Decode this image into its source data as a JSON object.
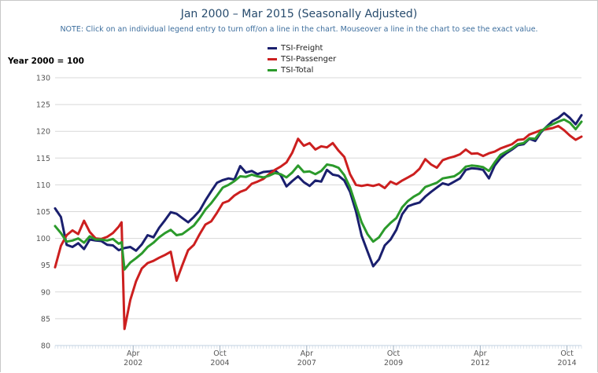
{
  "title": "Jan 2000 – Mar 2015 (Seasonally Adjusted)",
  "note": "NOTE: Click on an individual legend entry to turn off/on a line in the chart. Mouseover a line in the chart to see the exact value.",
  "y_axis_title": "Year 2000 = 100",
  "chart_data": {
    "type": "line",
    "title": "Jan 2000 – Mar 2015 (Seasonally Adjusted)",
    "ylabel": "Year 2000 = 100",
    "ylim": [
      80,
      130
    ],
    "y_ticks": [
      80,
      85,
      90,
      95,
      100,
      105,
      110,
      115,
      120,
      125,
      130
    ],
    "x_range": [
      "2000-01",
      "2015-03"
    ],
    "x_ticks": [
      {
        "month": "Apr",
        "year": "2002",
        "date": "2002-04"
      },
      {
        "month": "Oct",
        "year": "2004",
        "date": "2004-10"
      },
      {
        "month": "Apr",
        "year": "2007",
        "date": "2007-04"
      },
      {
        "month": "Oct",
        "year": "2009",
        "date": "2009-10"
      },
      {
        "month": "Apr",
        "year": "2012",
        "date": "2012-04"
      },
      {
        "month": "Oct",
        "year": "2014",
        "date": "2014-10"
      }
    ],
    "grid": true,
    "legend_position": "top-center",
    "series": [
      {
        "name": "TSI-Freight",
        "color": "#1a1f6e",
        "points": [
          [
            "2000-01",
            105.6
          ],
          [
            "2000-03",
            104.0
          ],
          [
            "2000-05",
            98.8
          ],
          [
            "2000-07",
            98.4
          ],
          [
            "2000-09",
            99.1
          ],
          [
            "2000-11",
            98.0
          ],
          [
            "2001-01",
            99.8
          ],
          [
            "2001-03",
            99.6
          ],
          [
            "2001-05",
            99.5
          ],
          [
            "2001-07",
            98.8
          ],
          [
            "2001-09",
            98.7
          ],
          [
            "2001-11",
            97.8
          ],
          [
            "2002-01",
            98.2
          ],
          [
            "2002-03",
            98.4
          ],
          [
            "2002-05",
            97.7
          ],
          [
            "2002-07",
            98.9
          ],
          [
            "2002-09",
            100.6
          ],
          [
            "2002-11",
            100.2
          ],
          [
            "2003-01",
            102.0
          ],
          [
            "2003-03",
            103.4
          ],
          [
            "2003-05",
            104.9
          ],
          [
            "2003-07",
            104.6
          ],
          [
            "2003-09",
            103.8
          ],
          [
            "2003-11",
            103.0
          ],
          [
            "2004-01",
            104.0
          ],
          [
            "2004-03",
            105.2
          ],
          [
            "2004-05",
            107.1
          ],
          [
            "2004-07",
            108.8
          ],
          [
            "2004-09",
            110.4
          ],
          [
            "2004-11",
            110.9
          ],
          [
            "2005-01",
            111.2
          ],
          [
            "2005-03",
            111.0
          ],
          [
            "2005-05",
            113.5
          ],
          [
            "2005-07",
            112.3
          ],
          [
            "2005-09",
            112.6
          ],
          [
            "2005-11",
            112.0
          ],
          [
            "2006-01",
            112.4
          ],
          [
            "2006-03",
            112.5
          ],
          [
            "2006-05",
            112.7
          ],
          [
            "2006-07",
            111.8
          ],
          [
            "2006-09",
            109.7
          ],
          [
            "2006-11",
            110.7
          ],
          [
            "2007-01",
            111.6
          ],
          [
            "2007-03",
            110.5
          ],
          [
            "2007-05",
            109.8
          ],
          [
            "2007-07",
            110.8
          ],
          [
            "2007-09",
            110.6
          ],
          [
            "2007-11",
            112.8
          ],
          [
            "2008-01",
            111.9
          ],
          [
            "2008-03",
            111.7
          ],
          [
            "2008-05",
            110.8
          ],
          [
            "2008-07",
            108.7
          ],
          [
            "2008-09",
            105.1
          ],
          [
            "2008-11",
            100.5
          ],
          [
            "2009-01",
            97.6
          ],
          [
            "2009-03",
            94.8
          ],
          [
            "2009-05",
            96.1
          ],
          [
            "2009-07",
            98.7
          ],
          [
            "2009-09",
            99.8
          ],
          [
            "2009-11",
            101.6
          ],
          [
            "2010-01",
            104.5
          ],
          [
            "2010-03",
            106.0
          ],
          [
            "2010-05",
            106.4
          ],
          [
            "2010-07",
            106.7
          ],
          [
            "2010-09",
            107.8
          ],
          [
            "2010-11",
            108.7
          ],
          [
            "2011-01",
            109.5
          ],
          [
            "2011-03",
            110.3
          ],
          [
            "2011-05",
            110.0
          ],
          [
            "2011-07",
            110.6
          ],
          [
            "2011-09",
            111.2
          ],
          [
            "2011-11",
            112.8
          ],
          [
            "2012-01",
            113.1
          ],
          [
            "2012-03",
            113.0
          ],
          [
            "2012-05",
            112.8
          ],
          [
            "2012-07",
            111.2
          ],
          [
            "2012-09",
            113.6
          ],
          [
            "2012-11",
            115.0
          ],
          [
            "2013-01",
            115.9
          ],
          [
            "2013-03",
            116.6
          ],
          [
            "2013-05",
            117.4
          ],
          [
            "2013-07",
            117.6
          ],
          [
            "2013-09",
            118.6
          ],
          [
            "2013-11",
            118.2
          ],
          [
            "2014-01",
            119.8
          ],
          [
            "2014-03",
            120.9
          ],
          [
            "2014-05",
            121.9
          ],
          [
            "2014-07",
            122.5
          ],
          [
            "2014-09",
            123.4
          ],
          [
            "2014-11",
            122.5
          ],
          [
            "2015-01",
            121.3
          ],
          [
            "2015-03",
            123.0
          ]
        ]
      },
      {
        "name": "TSI-Passenger",
        "color": "#cc1f1f",
        "points": [
          [
            "2000-01",
            94.6
          ],
          [
            "2000-03",
            98.6
          ],
          [
            "2000-05",
            100.6
          ],
          [
            "2000-07",
            101.5
          ],
          [
            "2000-09",
            100.8
          ],
          [
            "2000-11",
            103.3
          ],
          [
            "2001-01",
            101.2
          ],
          [
            "2001-03",
            100.0
          ],
          [
            "2001-05",
            99.9
          ],
          [
            "2001-07",
            100.3
          ],
          [
            "2001-09",
            101.0
          ],
          [
            "2001-11",
            102.2
          ],
          [
            "2001-12",
            103.0
          ],
          [
            "2002-01",
            83.1
          ],
          [
            "2002-03",
            88.5
          ],
          [
            "2002-05",
            92.0
          ],
          [
            "2002-07",
            94.4
          ],
          [
            "2002-09",
            95.4
          ],
          [
            "2002-11",
            95.8
          ],
          [
            "2003-01",
            96.4
          ],
          [
            "2003-03",
            96.9
          ],
          [
            "2003-05",
            97.5
          ],
          [
            "2003-07",
            92.1
          ],
          [
            "2003-09",
            95.0
          ],
          [
            "2003-11",
            97.8
          ],
          [
            "2004-01",
            98.8
          ],
          [
            "2004-03",
            100.8
          ],
          [
            "2004-05",
            102.6
          ],
          [
            "2004-07",
            103.2
          ],
          [
            "2004-09",
            104.8
          ],
          [
            "2004-11",
            106.6
          ],
          [
            "2005-01",
            107.0
          ],
          [
            "2005-03",
            108.0
          ],
          [
            "2005-05",
            108.7
          ],
          [
            "2005-07",
            109.1
          ],
          [
            "2005-09",
            110.2
          ],
          [
            "2005-11",
            110.6
          ],
          [
            "2006-01",
            111.1
          ],
          [
            "2006-03",
            112.0
          ],
          [
            "2006-05",
            112.8
          ],
          [
            "2006-07",
            113.4
          ],
          [
            "2006-09",
            114.2
          ],
          [
            "2006-11",
            116.0
          ],
          [
            "2007-01",
            118.6
          ],
          [
            "2007-03",
            117.3
          ],
          [
            "2007-05",
            117.8
          ],
          [
            "2007-07",
            116.6
          ],
          [
            "2007-09",
            117.2
          ],
          [
            "2007-11",
            117.0
          ],
          [
            "2008-01",
            117.8
          ],
          [
            "2008-03",
            116.4
          ],
          [
            "2008-05",
            115.2
          ],
          [
            "2008-07",
            112.0
          ],
          [
            "2008-09",
            110.0
          ],
          [
            "2008-11",
            109.8
          ],
          [
            "2009-01",
            110.0
          ],
          [
            "2009-03",
            109.8
          ],
          [
            "2009-05",
            110.1
          ],
          [
            "2009-07",
            109.4
          ],
          [
            "2009-09",
            110.6
          ],
          [
            "2009-11",
            110.1
          ],
          [
            "2010-01",
            110.8
          ],
          [
            "2010-03",
            111.4
          ],
          [
            "2010-05",
            112.0
          ],
          [
            "2010-07",
            113.0
          ],
          [
            "2010-09",
            114.8
          ],
          [
            "2010-11",
            113.8
          ],
          [
            "2011-01",
            113.2
          ],
          [
            "2011-03",
            114.6
          ],
          [
            "2011-05",
            115.0
          ],
          [
            "2011-07",
            115.3
          ],
          [
            "2011-09",
            115.7
          ],
          [
            "2011-11",
            116.6
          ],
          [
            "2012-01",
            115.8
          ],
          [
            "2012-03",
            115.9
          ],
          [
            "2012-05",
            115.4
          ],
          [
            "2012-07",
            115.9
          ],
          [
            "2012-09",
            116.2
          ],
          [
            "2012-11",
            116.8
          ],
          [
            "2013-01",
            117.2
          ],
          [
            "2013-03",
            117.6
          ],
          [
            "2013-05",
            118.4
          ],
          [
            "2013-07",
            118.5
          ],
          [
            "2013-09",
            119.4
          ],
          [
            "2013-11",
            119.8
          ],
          [
            "2014-01",
            120.2
          ],
          [
            "2014-03",
            120.4
          ],
          [
            "2014-05",
            120.6
          ],
          [
            "2014-07",
            121.0
          ],
          [
            "2014-09",
            120.2
          ],
          [
            "2014-11",
            119.2
          ],
          [
            "2015-01",
            118.4
          ],
          [
            "2015-03",
            119.0
          ]
        ]
      },
      {
        "name": "TSI-Total",
        "color": "#2b9a2b",
        "points": [
          [
            "2000-01",
            102.3
          ],
          [
            "2000-03",
            101.0
          ],
          [
            "2000-05",
            99.4
          ],
          [
            "2000-07",
            99.6
          ],
          [
            "2000-09",
            100.0
          ],
          [
            "2000-11",
            99.2
          ],
          [
            "2001-01",
            100.4
          ],
          [
            "2001-03",
            99.8
          ],
          [
            "2001-05",
            99.8
          ],
          [
            "2001-07",
            99.6
          ],
          [
            "2001-09",
            99.9
          ],
          [
            "2001-11",
            99.0
          ],
          [
            "2001-12",
            99.3
          ],
          [
            "2002-01",
            94.2
          ],
          [
            "2002-03",
            95.5
          ],
          [
            "2002-05",
            96.3
          ],
          [
            "2002-07",
            97.2
          ],
          [
            "2002-09",
            98.4
          ],
          [
            "2002-11",
            99.2
          ],
          [
            "2003-01",
            100.2
          ],
          [
            "2003-03",
            101.0
          ],
          [
            "2003-05",
            101.6
          ],
          [
            "2003-07",
            100.6
          ],
          [
            "2003-09",
            100.8
          ],
          [
            "2003-11",
            101.6
          ],
          [
            "2004-01",
            102.4
          ],
          [
            "2004-03",
            103.8
          ],
          [
            "2004-05",
            105.4
          ],
          [
            "2004-07",
            106.6
          ],
          [
            "2004-09",
            108.0
          ],
          [
            "2004-11",
            109.5
          ],
          [
            "2005-01",
            110.0
          ],
          [
            "2005-03",
            110.7
          ],
          [
            "2005-05",
            111.6
          ],
          [
            "2005-07",
            111.5
          ],
          [
            "2005-09",
            111.9
          ],
          [
            "2005-11",
            111.6
          ],
          [
            "2006-01",
            111.4
          ],
          [
            "2006-03",
            111.7
          ],
          [
            "2006-05",
            112.2
          ],
          [
            "2006-07",
            112.0
          ],
          [
            "2006-09",
            111.4
          ],
          [
            "2006-11",
            112.3
          ],
          [
            "2007-01",
            113.6
          ],
          [
            "2007-03",
            112.4
          ],
          [
            "2007-05",
            112.5
          ],
          [
            "2007-07",
            112.0
          ],
          [
            "2007-09",
            112.6
          ],
          [
            "2007-11",
            113.8
          ],
          [
            "2008-01",
            113.6
          ],
          [
            "2008-03",
            113.2
          ],
          [
            "2008-05",
            111.8
          ],
          [
            "2008-07",
            109.5
          ],
          [
            "2008-09",
            106.2
          ],
          [
            "2008-11",
            103.0
          ],
          [
            "2009-01",
            100.8
          ],
          [
            "2009-03",
            99.4
          ],
          [
            "2009-05",
            100.2
          ],
          [
            "2009-07",
            101.8
          ],
          [
            "2009-09",
            102.9
          ],
          [
            "2009-11",
            103.8
          ],
          [
            "2010-01",
            105.8
          ],
          [
            "2010-03",
            107.0
          ],
          [
            "2010-05",
            107.8
          ],
          [
            "2010-07",
            108.4
          ],
          [
            "2010-09",
            109.6
          ],
          [
            "2010-11",
            110.0
          ],
          [
            "2011-01",
            110.4
          ],
          [
            "2011-03",
            111.2
          ],
          [
            "2011-05",
            111.4
          ],
          [
            "2011-07",
            111.6
          ],
          [
            "2011-09",
            112.3
          ],
          [
            "2011-11",
            113.4
          ],
          [
            "2012-01",
            113.6
          ],
          [
            "2012-03",
            113.5
          ],
          [
            "2012-05",
            113.3
          ],
          [
            "2012-07",
            112.6
          ],
          [
            "2012-09",
            114.2
          ],
          [
            "2012-11",
            115.6
          ],
          [
            "2013-01",
            116.2
          ],
          [
            "2013-03",
            116.8
          ],
          [
            "2013-05",
            117.6
          ],
          [
            "2013-07",
            117.8
          ],
          [
            "2013-09",
            118.7
          ],
          [
            "2013-11",
            118.6
          ],
          [
            "2014-01",
            120.0
          ],
          [
            "2014-03",
            120.8
          ],
          [
            "2014-05",
            121.3
          ],
          [
            "2014-07",
            121.8
          ],
          [
            "2014-09",
            122.2
          ],
          [
            "2014-11",
            121.6
          ],
          [
            "2015-01",
            120.4
          ],
          [
            "2015-03",
            121.8
          ]
        ]
      }
    ]
  }
}
